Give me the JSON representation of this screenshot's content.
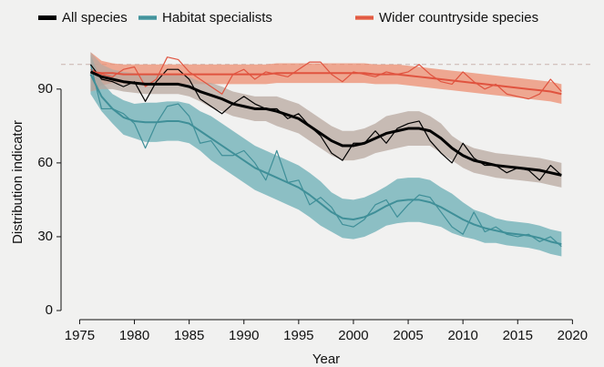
{
  "chart_data": {
    "type": "line",
    "x_label": "Year",
    "y_label": "Distribution indicator",
    "x": [
      1976,
      1977,
      1978,
      1979,
      1980,
      1981,
      1982,
      1983,
      1984,
      1985,
      1986,
      1987,
      1988,
      1989,
      1990,
      1991,
      1992,
      1993,
      1994,
      1995,
      1996,
      1997,
      1998,
      1999,
      2000,
      2001,
      2002,
      2003,
      2004,
      2005,
      2006,
      2007,
      2008,
      2009,
      2010,
      2011,
      2012,
      2013,
      2014,
      2015,
      2016,
      2017,
      2018,
      2019
    ],
    "xlim": [
      1973.3,
      2021.8
    ],
    "xticks": [
      1975,
      1980,
      1985,
      1990,
      1995,
      2000,
      2005,
      2010,
      2015,
      2020
    ],
    "ylim": [
      0,
      104
    ],
    "yticks": [
      0,
      30,
      60,
      90
    ],
    "reference_line": 100,
    "series": [
      {
        "name": "All species",
        "color": "#000000",
        "band_color": "#b8a8a0",
        "values": [
          100,
          94,
          93,
          91,
          93,
          85,
          93,
          98,
          98,
          94,
          86,
          83,
          80,
          84,
          87,
          84,
          82,
          82,
          78,
          80,
          75,
          71,
          64,
          61,
          68,
          68,
          73,
          68,
          74,
          76,
          77,
          69,
          64,
          60,
          68,
          62,
          59,
          59,
          56,
          58,
          57,
          53,
          59,
          55
        ],
        "trend": [
          97,
          95,
          94,
          93,
          92.5,
          92,
          92,
          92,
          92,
          91,
          89,
          87.5,
          86,
          84,
          83,
          82,
          82,
          81,
          79.5,
          78,
          75,
          72,
          69,
          67,
          67,
          68,
          70,
          72,
          73,
          74,
          74,
          73,
          70,
          66,
          63,
          61,
          60,
          59,
          58.5,
          58,
          57.5,
          57,
          56,
          55
        ],
        "ci": [
          8,
          5,
          4,
          4,
          4,
          4,
          4,
          4,
          4,
          4,
          4,
          5,
          5,
          5,
          5,
          5,
          5,
          6,
          6,
          6,
          6,
          6,
          6,
          6,
          6,
          6,
          6,
          7,
          7,
          7,
          7,
          6,
          6,
          5,
          5,
          5,
          5,
          5,
          5,
          5,
          5,
          5,
          5,
          5
        ]
      },
      {
        "name": "Habitat specialists",
        "color": "#3f8f98",
        "band_color": "#6aaeb5",
        "values": [
          100,
          82,
          82,
          80,
          76,
          66,
          76,
          83,
          84,
          79,
          68,
          69,
          63,
          63,
          65,
          60,
          53,
          65,
          52,
          53,
          43,
          46,
          42,
          35,
          34,
          37,
          43,
          45,
          38,
          43,
          47,
          46,
          40,
          34,
          31,
          40,
          32,
          34,
          31,
          30,
          31,
          28,
          30,
          26
        ],
        "trend": [
          96,
          87,
          82,
          78.5,
          77,
          76.5,
          76.5,
          77,
          77,
          76,
          73,
          70,
          67,
          64,
          61,
          58,
          56,
          54,
          52,
          50,
          47,
          43.5,
          40,
          37.5,
          37,
          38,
          40,
          42.5,
          44.5,
          45,
          45,
          44,
          42,
          39.5,
          37,
          35,
          33.5,
          32.5,
          31.5,
          31,
          30.5,
          29.5,
          28,
          27
        ],
        "ci": [
          8,
          6,
          6,
          7,
          7,
          8,
          8,
          8,
          8,
          8,
          8,
          9,
          9,
          9,
          9,
          9,
          9,
          9,
          9,
          9,
          9,
          9,
          8,
          8,
          8,
          8,
          8,
          8,
          9,
          9,
          9,
          9,
          8,
          8,
          7,
          6,
          6,
          5,
          5,
          5,
          5,
          5,
          5,
          5
        ]
      },
      {
        "name": "Wider countryside species",
        "color": "#e0533f",
        "band_color": "#ec8e72",
        "values": [
          98,
          96,
          95,
          98,
          99,
          91,
          94,
          103,
          102,
          97,
          94,
          91,
          88,
          96,
          98,
          94,
          97,
          96,
          95,
          98,
          101,
          101,
          96,
          93,
          97,
          96,
          95,
          97,
          96,
          97,
          100,
          96,
          93,
          92,
          97,
          93,
          90,
          92,
          88,
          87,
          86,
          88,
          94,
          89
        ],
        "trend": [
          97,
          96.5,
          96.5,
          96,
          96,
          96,
          96,
          96,
          96,
          96,
          96,
          96,
          96,
          96,
          96,
          96,
          96,
          96.5,
          96.5,
          96.5,
          96.5,
          96.5,
          96.5,
          96.5,
          96.5,
          96.5,
          96,
          96,
          96,
          95.5,
          95,
          94.5,
          94,
          93.5,
          93,
          92.5,
          92,
          91.5,
          91,
          90.5,
          90,
          89.5,
          89,
          88
        ],
        "ci": [
          8,
          5,
          4,
          4,
          4,
          4,
          4,
          4,
          4,
          4,
          4,
          4,
          4,
          4,
          4,
          4,
          4,
          4,
          4,
          4,
          4,
          4,
          4,
          4,
          4,
          4,
          4,
          4,
          4,
          4,
          4,
          4,
          4,
          4,
          4,
          4,
          4,
          4,
          4,
          4,
          4,
          4,
          4,
          4
        ]
      }
    ]
  }
}
